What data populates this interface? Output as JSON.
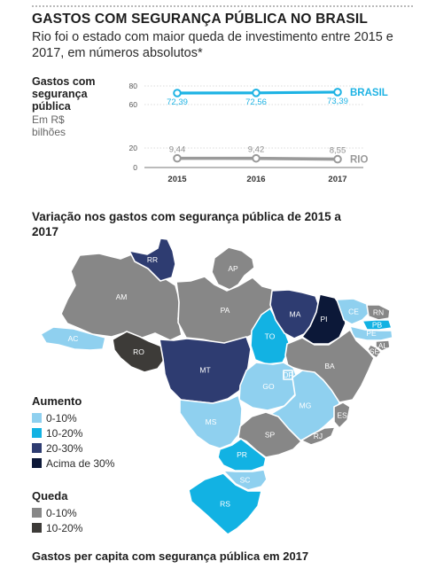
{
  "header": {
    "title": "GASTOS COM SEGURANÇA PÚBLICA NO BRASIL",
    "subtitle": "Rio foi o estado com maior queda de investimento entre 2015 e 2017, em números absolutos*"
  },
  "linechart_labels": {
    "ylabel": "Gastos com segurança pública",
    "unit": "Em R$ bilhões"
  },
  "chart_data": [
    {
      "type": "line",
      "x": [
        "2015",
        "2016",
        "2017"
      ],
      "yticks": [
        0,
        20,
        60,
        80
      ],
      "ylim": [
        0,
        80
      ],
      "series": [
        {
          "name": "BRASIL",
          "values": [
            72.39,
            72.56,
            73.39
          ],
          "labels": [
            "72,39",
            "72,56",
            "73,39"
          ],
          "color": "#1eb3e4"
        },
        {
          "name": "RIO",
          "values": [
            9.44,
            9.42,
            8.55
          ],
          "labels": [
            "9,44",
            "9,42",
            "8,55"
          ],
          "color": "#9a9a9a"
        }
      ]
    }
  ],
  "map": {
    "title": "Variação nos gastos com segurança pública de 2015 a 2017",
    "colors": {
      "up_0_10": "#8fd0ef",
      "up_10_20": "#12b2e3",
      "up_20_30": "#2e3c71",
      "up_30": "#0c1838",
      "down_0_10": "#878787",
      "down_10_20": "#3d3b38"
    },
    "states": [
      {
        "code": "RR",
        "class": "up_20_30"
      },
      {
        "code": "AP",
        "class": "down_0_10"
      },
      {
        "code": "AM",
        "class": "down_0_10"
      },
      {
        "code": "PA",
        "class": "down_0_10"
      },
      {
        "code": "AC",
        "class": "up_0_10"
      },
      {
        "code": "RO",
        "class": "down_10_20"
      },
      {
        "code": "MT",
        "class": "up_20_30"
      },
      {
        "code": "TO",
        "class": "up_10_20"
      },
      {
        "code": "MA",
        "class": "up_20_30"
      },
      {
        "code": "PI",
        "class": "up_30"
      },
      {
        "code": "CE",
        "class": "up_0_10"
      },
      {
        "code": "RN",
        "class": "down_0_10"
      },
      {
        "code": "PB",
        "class": "up_10_20"
      },
      {
        "code": "PE",
        "class": "up_0_10"
      },
      {
        "code": "AL",
        "class": "down_0_10"
      },
      {
        "code": "SE",
        "class": "down_0_10"
      },
      {
        "code": "BA",
        "class": "down_0_10"
      },
      {
        "code": "DF",
        "class": "up_0_10"
      },
      {
        "code": "GO",
        "class": "up_0_10"
      },
      {
        "code": "MG",
        "class": "up_0_10"
      },
      {
        "code": "ES",
        "class": "down_0_10"
      },
      {
        "code": "MS",
        "class": "up_0_10"
      },
      {
        "code": "SP",
        "class": "down_0_10"
      },
      {
        "code": "RJ",
        "class": "down_0_10"
      },
      {
        "code": "PR",
        "class": "up_10_20"
      },
      {
        "code": "SC",
        "class": "up_0_10"
      },
      {
        "code": "RS",
        "class": "up_10_20"
      }
    ]
  },
  "legend": {
    "increase_title": "Aumento",
    "increase_items": [
      {
        "label": "0-10%",
        "color": "#8fd0ef"
      },
      {
        "label": "10-20%",
        "color": "#12b2e3"
      },
      {
        "label": "20-30%",
        "color": "#2e3c71"
      },
      {
        "label": "Acima de 30%",
        "color": "#0c1838"
      }
    ],
    "decrease_title": "Queda",
    "decrease_items": [
      {
        "label": "0-10%",
        "color": "#878787"
      },
      {
        "label": "10-20%",
        "color": "#3d3b38"
      }
    ]
  },
  "footer": {
    "next_title": "Gastos per capita com segurança pública em 2017"
  }
}
